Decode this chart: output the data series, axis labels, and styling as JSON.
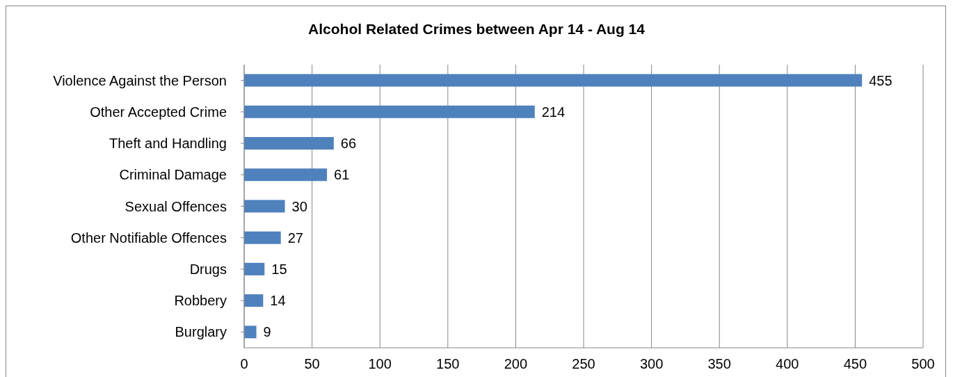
{
  "chart_data": {
    "type": "bar",
    "orientation": "horizontal",
    "title": "Alcohol Related Crimes between Apr 14 - Aug 14",
    "categories": [
      "Violence Against the Person",
      "Other Accepted Crime",
      "Theft and Handling",
      "Criminal Damage",
      "Sexual Offences",
      "Other Notifiable Offences",
      "Drugs",
      "Robbery",
      "Burglary"
    ],
    "values": [
      455,
      214,
      66,
      61,
      30,
      27,
      15,
      14,
      9
    ],
    "color": "#4f81bd",
    "xlim": [
      0,
      500
    ],
    "xticks": [
      0,
      50,
      100,
      150,
      200,
      250,
      300,
      350,
      400,
      450,
      500
    ],
    "grid": "x",
    "data_labels": true
  }
}
